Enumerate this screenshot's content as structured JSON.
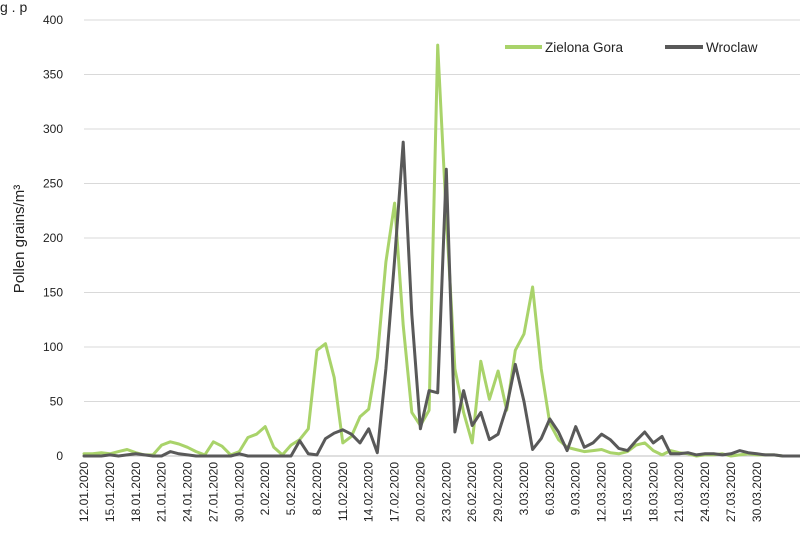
{
  "caption_fragment": "g      .     p",
  "chart_data": {
    "type": "line",
    "ylabel": "Pollen grains/m³",
    "ylim": [
      0,
      400
    ],
    "yticks": [
      0,
      50,
      100,
      150,
      200,
      250,
      300,
      350,
      400
    ],
    "x_tick_labels": [
      "12.01.2020",
      "15.01.2020",
      "18.01.2020",
      "21.01.2020",
      "24.01.2020",
      "27.01.2020",
      "30.01.2020",
      "2.02.2020",
      "5.02.2020",
      "8.02.2020",
      "11.02.2020",
      "14.02.2020",
      "17.02.2020",
      "20.02.2020",
      "23.02.2020",
      "26.02.2020",
      "29.02.2020",
      "3.03.2020",
      "6.03.2020",
      "9.03.2020",
      "12.03.2020",
      "15.03.2020",
      "18.03.2020",
      "21.03.2020",
      "24.03.2020",
      "27.03.2020",
      "30.03.2020"
    ],
    "legend_position": "top-right",
    "grid": true,
    "series": [
      {
        "name": "Zielona Gora",
        "color": "#a9d36a",
        "values": [
          2,
          2,
          3,
          2,
          4,
          6,
          3,
          1,
          1,
          10,
          13,
          11,
          8,
          4,
          1,
          13,
          9,
          1,
          4,
          17,
          20,
          27,
          8,
          1,
          10,
          15,
          25,
          97,
          103,
          72,
          12,
          18,
          36,
          43,
          90,
          178,
          232,
          120,
          40,
          28,
          42,
          377,
          220,
          80,
          40,
          12,
          87,
          52,
          78,
          42,
          97,
          112,
          155,
          80,
          30,
          15,
          8,
          6,
          4,
          5,
          6,
          3,
          2,
          4,
          10,
          12,
          5,
          1,
          5,
          3,
          2,
          0,
          1,
          1,
          2,
          0,
          1,
          2,
          1,
          1,
          1,
          0,
          0,
          0
        ]
      },
      {
        "name": "Wroclaw",
        "color": "#595959",
        "values": [
          0,
          0,
          0,
          1,
          0,
          1,
          2,
          1,
          0,
          0,
          4,
          2,
          1,
          0,
          0,
          0,
          0,
          0,
          2,
          0,
          0,
          0,
          0,
          0,
          0,
          14,
          2,
          1,
          16,
          21,
          24,
          20,
          12,
          25,
          3,
          80,
          180,
          288,
          130,
          25,
          60,
          58,
          263,
          22,
          60,
          28,
          40,
          15,
          20,
          45,
          84,
          50,
          6,
          16,
          34,
          22,
          5,
          27,
          8,
          12,
          20,
          15,
          7,
          5,
          14,
          22,
          12,
          18,
          2,
          2,
          3,
          1,
          2,
          2,
          1,
          2,
          5,
          3,
          2,
          1,
          1,
          0,
          0,
          0
        ]
      }
    ]
  }
}
